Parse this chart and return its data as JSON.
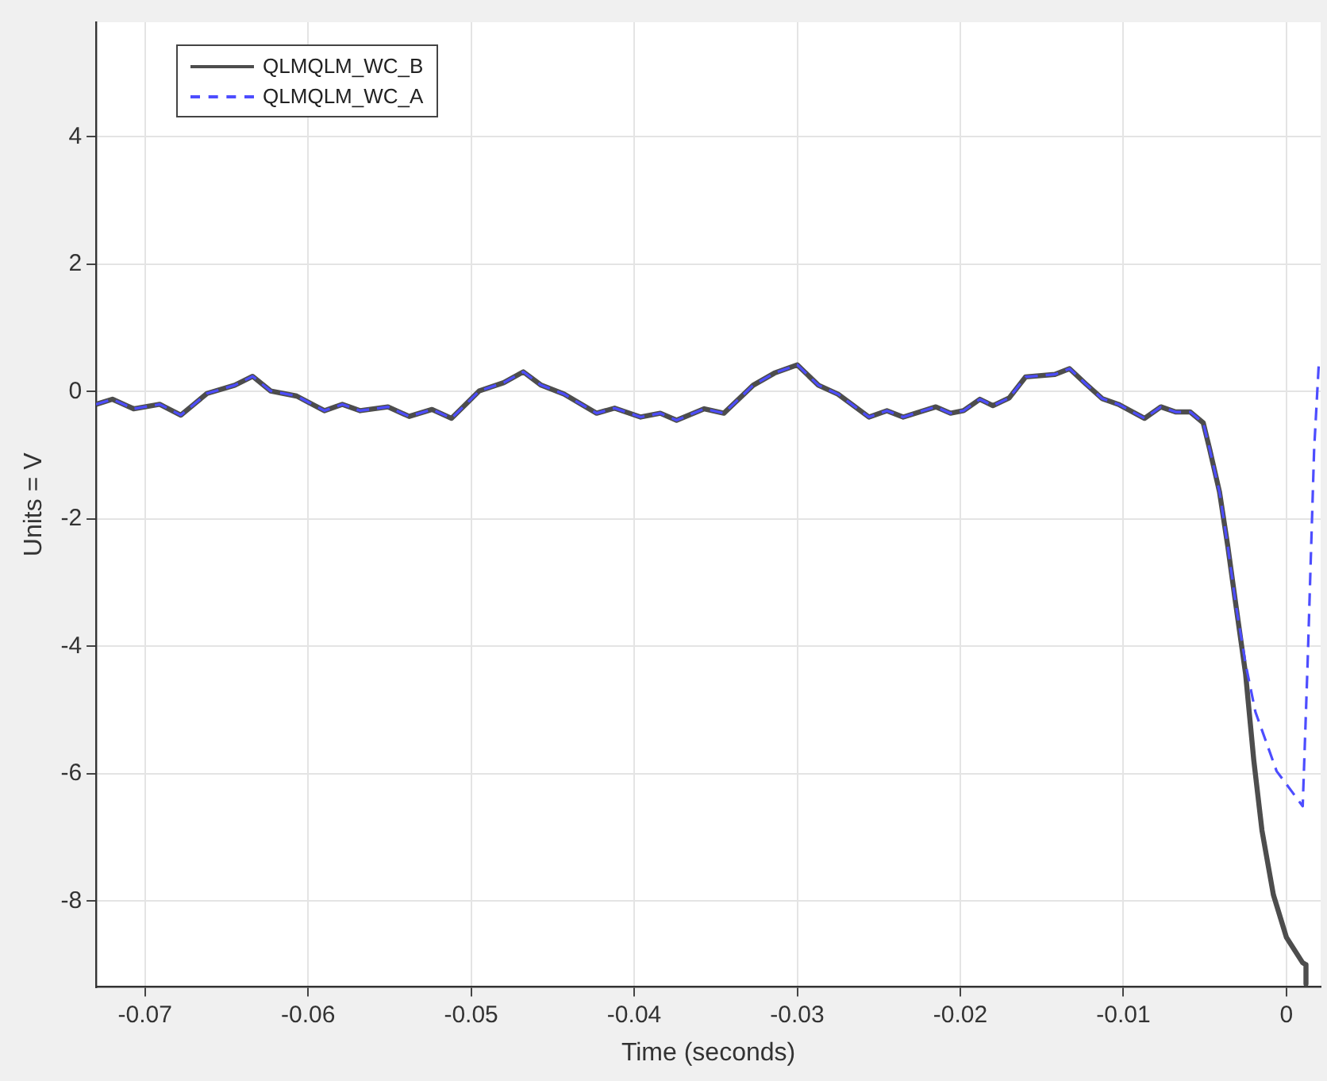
{
  "chart_data": {
    "type": "line",
    "xlabel": "Time (seconds)",
    "ylabel": "Units = V",
    "xlim": [
      -0.073,
      0.0021
    ],
    "xticks": [
      -0.07,
      -0.06,
      -0.05,
      -0.04,
      -0.03,
      -0.02,
      -0.01,
      0
    ],
    "ylim": [
      -9.35,
      5.8
    ],
    "yticks": [
      -8,
      -6,
      -4,
      -2,
      0,
      2,
      4
    ],
    "grid": true,
    "legend": "top left",
    "marker": "none",
    "series": [
      {
        "name": "QLMQLM_WC_B",
        "color": "#4d4d4d",
        "line_style": "solid",
        "x": [
          -0.073,
          -0.072,
          -0.0707,
          -0.0691,
          -0.0678,
          -0.0662,
          -0.0645,
          -0.0634,
          -0.0623,
          -0.0607,
          -0.059,
          -0.0579,
          -0.0568,
          -0.0551,
          -0.0538,
          -0.0524,
          -0.0512,
          -0.0495,
          -0.048,
          -0.0468,
          -0.0457,
          -0.0443,
          -0.0423,
          -0.0412,
          -0.0396,
          -0.0384,
          -0.0374,
          -0.0357,
          -0.0345,
          -0.0327,
          -0.0314,
          -0.03,
          -0.0287,
          -0.0275,
          -0.0256,
          -0.0245,
          -0.0235,
          -0.0215,
          -0.0206,
          -0.0198,
          -0.0188,
          -0.018,
          -0.017,
          -0.016,
          -0.0142,
          -0.0133,
          -0.0123,
          -0.0113,
          -0.0103,
          -0.0087,
          -0.0077,
          -0.0068,
          -0.0059,
          -0.0051,
          -0.0047,
          -0.0041,
          -0.0036,
          -0.0031,
          -0.0025,
          -0.002,
          -0.0015,
          -0.0008,
          0,
          0.001,
          0.0012,
          0.0012
        ],
        "values": [
          -0.2,
          -0.12,
          -0.27,
          -0.2,
          -0.37,
          -0.03,
          0.1,
          0.24,
          0.01,
          -0.07,
          -0.3,
          -0.2,
          -0.3,
          -0.24,
          -0.39,
          -0.28,
          -0.42,
          0.01,
          0.14,
          0.31,
          0.1,
          -0.04,
          -0.34,
          -0.26,
          -0.4,
          -0.34,
          -0.45,
          -0.27,
          -0.34,
          0.1,
          0.29,
          0.42,
          0.1,
          -0.04,
          -0.4,
          -0.3,
          -0.4,
          -0.24,
          -0.34,
          -0.3,
          -0.12,
          -0.22,
          -0.1,
          0.23,
          0.27,
          0.36,
          0.12,
          -0.11,
          -0.2,
          -0.42,
          -0.24,
          -0.32,
          -0.32,
          -0.49,
          -0.91,
          -1.58,
          -2.42,
          -3.35,
          -4.44,
          -5.79,
          -6.89,
          -7.9,
          -8.57,
          -8.97,
          -9.0,
          -9.3
        ]
      },
      {
        "name": "QLMQLM_WC_A",
        "color": "#4d4dff",
        "line_style": "dashed",
        "x": [
          -0.073,
          -0.072,
          -0.0707,
          -0.0691,
          -0.0678,
          -0.0662,
          -0.0645,
          -0.0634,
          -0.0623,
          -0.0607,
          -0.059,
          -0.0579,
          -0.0568,
          -0.0551,
          -0.0538,
          -0.0524,
          -0.0512,
          -0.0495,
          -0.048,
          -0.0468,
          -0.0457,
          -0.0443,
          -0.0423,
          -0.0412,
          -0.0396,
          -0.0384,
          -0.0374,
          -0.0357,
          -0.0345,
          -0.0327,
          -0.0314,
          -0.03,
          -0.0287,
          -0.0275,
          -0.0256,
          -0.0245,
          -0.0235,
          -0.0215,
          -0.0206,
          -0.0198,
          -0.0188,
          -0.018,
          -0.017,
          -0.016,
          -0.0142,
          -0.0133,
          -0.0123,
          -0.0113,
          -0.0103,
          -0.0087,
          -0.0077,
          -0.0068,
          -0.0059,
          -0.0051,
          -0.0047,
          -0.0041,
          -0.0036,
          -0.0031,
          -0.0025,
          -0.0019,
          -0.0006,
          0.001,
          0.0013,
          0.0017,
          0.002
        ],
        "values": [
          -0.2,
          -0.12,
          -0.27,
          -0.2,
          -0.37,
          -0.03,
          0.1,
          0.24,
          0.01,
          -0.07,
          -0.3,
          -0.2,
          -0.3,
          -0.24,
          -0.39,
          -0.28,
          -0.42,
          0.01,
          0.14,
          0.31,
          0.1,
          -0.04,
          -0.34,
          -0.26,
          -0.4,
          -0.34,
          -0.45,
          -0.27,
          -0.34,
          0.1,
          0.29,
          0.42,
          0.1,
          -0.04,
          -0.4,
          -0.3,
          -0.4,
          -0.24,
          -0.34,
          -0.3,
          -0.12,
          -0.22,
          -0.1,
          0.23,
          0.27,
          0.36,
          0.12,
          -0.11,
          -0.2,
          -0.42,
          -0.24,
          -0.32,
          -0.32,
          -0.49,
          -0.91,
          -1.58,
          -2.42,
          -3.35,
          -4.28,
          -5.03,
          -5.96,
          -6.51,
          -4.27,
          -0.91,
          0.5
        ]
      }
    ]
  }
}
